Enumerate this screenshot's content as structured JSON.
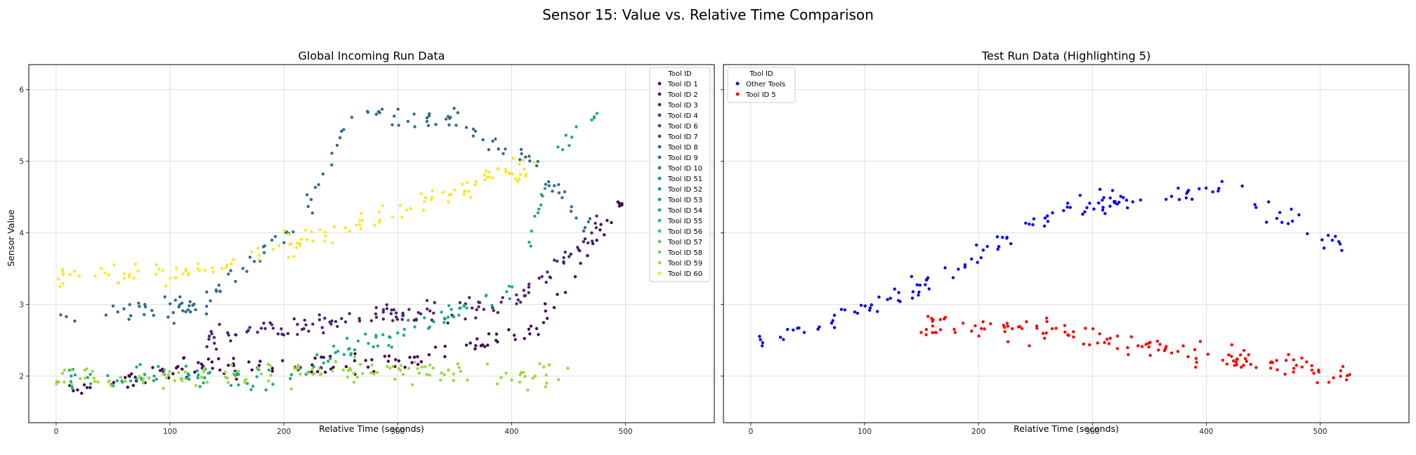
{
  "figure": {
    "title": "Sensor 15: Value vs. Relative Time Comparison",
    "shared_ylabel": "Sensor Value"
  },
  "chart_data": [
    {
      "type": "scatter",
      "title": "Global Incoming Run Data",
      "xlabel": "Relative Time (seconds)",
      "ylabel": "Sensor Value",
      "xlim": [
        -24,
        578
      ],
      "ylim": [
        1.35,
        6.35
      ],
      "xticks": [
        0,
        100,
        200,
        300,
        400,
        500
      ],
      "yticks": [
        2,
        3,
        4,
        5,
        6
      ],
      "grid": true,
      "legend": {
        "title": "Tool ID",
        "placement": "top-right",
        "entries": [
          "Tool ID 1",
          "Tool ID 2",
          "Tool ID 3",
          "Tool ID 4",
          "Tool ID 6",
          "Tool ID 7",
          "Tool ID 8",
          "Tool ID 9",
          "Tool ID 10",
          "Tool ID 51",
          "Tool ID 52",
          "Tool ID 53",
          "Tool ID 54",
          "Tool ID 55",
          "Tool ID 56",
          "Tool ID 57",
          "Tool ID 58",
          "Tool ID 59",
          "Tool ID 60"
        ],
        "colors": [
          "#440154",
          "#471365",
          "#482475",
          "#463480",
          "#414487",
          "#3b528b",
          "#355f8d",
          "#2f6c8e",
          "#2a788e",
          "#25848e",
          "#21918c",
          "#1e9c89",
          "#22a884",
          "#2fb47c",
          "#44bf70",
          "#5ec962",
          "#7ad151",
          "#9bd93c",
          "#fde725"
        ]
      },
      "series_trends": [
        {
          "name": "Tool ID 1",
          "x": [
            5,
            120,
            300,
            420,
            500
          ],
          "y": [
            1.75,
            2.1,
            2.2,
            2.6,
            4.5
          ]
        },
        {
          "name": "Tool ID 3",
          "x": [
            130,
            250,
            400,
            480
          ],
          "y": [
            2.5,
            2.8,
            3.0,
            4.2
          ]
        },
        {
          "name": "Tool ID 9",
          "x": [
            0,
            130,
            220,
            260,
            350,
            430,
            470
          ],
          "y": [
            2.8,
            3.0,
            4.3,
            5.7,
            5.6,
            4.8,
            4.0
          ]
        },
        {
          "name": "Tool ID 54",
          "x": [
            10,
            200,
            400,
            440,
            480
          ],
          "y": [
            2.0,
            2.0,
            3.2,
            5.1,
            5.8
          ]
        },
        {
          "name": "Tool ID 59",
          "x": [
            0,
            150,
            300,
            450
          ],
          "y": [
            1.95,
            2.0,
            2.1,
            2.0
          ]
        },
        {
          "name": "Tool ID 60",
          "x": [
            0,
            60,
            140,
            280,
            430
          ],
          "y": [
            3.35,
            3.45,
            3.5,
            4.2,
            5.0
          ]
        }
      ]
    },
    {
      "type": "scatter",
      "title": "Test Run Data (Highlighting 5)",
      "xlabel": "Relative Time (seconds)",
      "xlim": [
        -24,
        578
      ],
      "ylim": [
        1.35,
        6.35
      ],
      "xticks": [
        0,
        100,
        200,
        300,
        400,
        500
      ],
      "yticks": [
        2,
        3,
        4,
        5,
        6
      ],
      "grid": true,
      "legend": {
        "title": "Tool ID",
        "placement": "top-left",
        "entries": [
          "Other Tools",
          "Tool ID 5"
        ],
        "colors": [
          "#0000ff",
          "#ff0000"
        ]
      },
      "series_trends": [
        {
          "name": "Other Tools",
          "x": [
            0,
            130,
            270,
            420,
            520
          ],
          "y": [
            2.5,
            3.1,
            4.3,
            4.6,
            3.8
          ]
        },
        {
          "name": "Tool ID 5",
          "x": [
            140,
            200,
            300,
            400,
            470,
            530
          ],
          "y": [
            2.7,
            2.72,
            2.55,
            2.3,
            2.15,
            2.0
          ]
        }
      ]
    }
  ]
}
